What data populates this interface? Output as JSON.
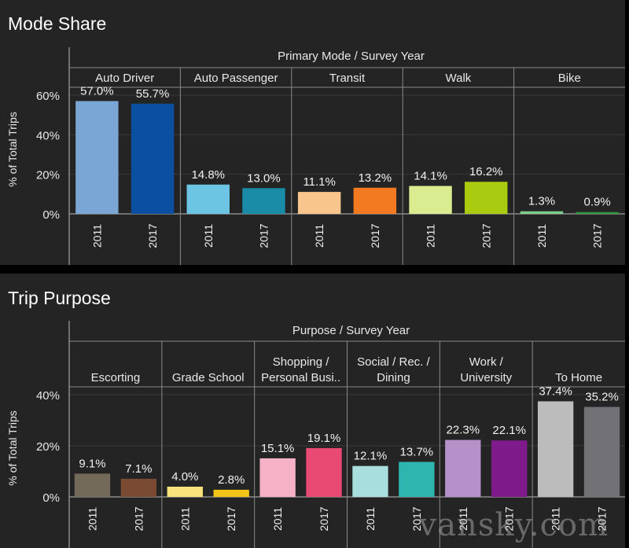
{
  "watermark": "vansky.com",
  "chart_data": [
    {
      "type": "bar",
      "title": "Mode Share",
      "group_header": "Primary Mode  /  Survey Year",
      "ylabel": "% of Total Trips",
      "yticks": [
        "0%",
        "20%",
        "40%",
        "60%"
      ],
      "ylim": [
        0,
        60
      ],
      "groups": [
        {
          "name": [
            "Auto Driver"
          ],
          "bars": [
            {
              "year": "2011",
              "value": 57.0,
              "label": "57.0%",
              "color": "#7aa6d6"
            },
            {
              "year": "2017",
              "value": 55.7,
              "label": "55.7%",
              "color": "#0a4fa0"
            }
          ]
        },
        {
          "name": [
            "Auto Passenger"
          ],
          "bars": [
            {
              "year": "2011",
              "value": 14.8,
              "label": "14.8%",
              "color": "#6cc5e2"
            },
            {
              "year": "2017",
              "value": 13.0,
              "label": "13.0%",
              "color": "#1a8ca8"
            }
          ]
        },
        {
          "name": [
            "Transit"
          ],
          "bars": [
            {
              "year": "2011",
              "value": 11.1,
              "label": "11.1%",
              "color": "#f8c58c"
            },
            {
              "year": "2017",
              "value": 13.2,
              "label": "13.2%",
              "color": "#f47a22"
            }
          ]
        },
        {
          "name": [
            "Walk"
          ],
          "bars": [
            {
              "year": "2011",
              "value": 14.1,
              "label": "14.1%",
              "color": "#d9ec8f"
            },
            {
              "year": "2017",
              "value": 16.2,
              "label": "16.2%",
              "color": "#a9cc10"
            }
          ]
        },
        {
          "name": [
            "Bike"
          ],
          "bars": [
            {
              "year": "2011",
              "value": 1.3,
              "label": "1.3%",
              "color": "#7fcf8c"
            },
            {
              "year": "2017",
              "value": 0.9,
              "label": "0.9%",
              "color": "#2e9a3a"
            }
          ]
        }
      ]
    },
    {
      "type": "bar",
      "title": "Trip Purpose",
      "group_header": "Purpose  /  Survey Year",
      "ylabel": "% of Total Trips",
      "yticks": [
        "0%",
        "20%",
        "40%"
      ],
      "ylim": [
        0,
        40
      ],
      "groups": [
        {
          "name": [
            "Escorting"
          ],
          "bars": [
            {
              "year": "2011",
              "value": 9.1,
              "label": "9.1%",
              "color": "#746a5a"
            },
            {
              "year": "2017",
              "value": 7.1,
              "label": "7.1%",
              "color": "#7a4a32"
            }
          ]
        },
        {
          "name": [
            "Grade School"
          ],
          "bars": [
            {
              "year": "2011",
              "value": 4.0,
              "label": "4.0%",
              "color": "#f6e27a"
            },
            {
              "year": "2017",
              "value": 2.8,
              "label": "2.8%",
              "color": "#f2c418"
            }
          ]
        },
        {
          "name": [
            "Shopping /",
            "Personal Busi.."
          ],
          "bars": [
            {
              "year": "2011",
              "value": 15.1,
              "label": "15.1%",
              "color": "#f5b2c6"
            },
            {
              "year": "2017",
              "value": 19.1,
              "label": "19.1%",
              "color": "#e84a74"
            }
          ]
        },
        {
          "name": [
            "Social / Rec. /",
            "Dining"
          ],
          "bars": [
            {
              "year": "2011",
              "value": 12.1,
              "label": "12.1%",
              "color": "#a8dede"
            },
            {
              "year": "2017",
              "value": 13.7,
              "label": "13.7%",
              "color": "#2eb5b0"
            }
          ]
        },
        {
          "name": [
            "Work /",
            "University"
          ],
          "bars": [
            {
              "year": "2011",
              "value": 22.3,
              "label": "22.3%",
              "color": "#b690c8"
            },
            {
              "year": "2017",
              "value": 22.1,
              "label": "22.1%",
              "color": "#7e1a8a"
            }
          ]
        },
        {
          "name": [
            "To Home"
          ],
          "bars": [
            {
              "year": "2011",
              "value": 37.4,
              "label": "37.4%",
              "color": "#bcbcbc"
            },
            {
              "year": "2017",
              "value": 35.2,
              "label": "35.2%",
              "color": "#727276"
            }
          ]
        }
      ]
    }
  ]
}
